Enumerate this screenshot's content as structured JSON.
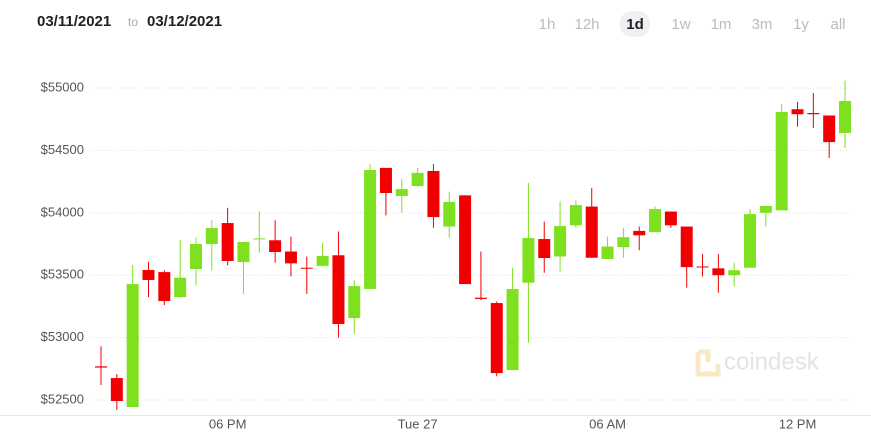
{
  "chart_data": {
    "type": "candlestick",
    "start_date": "03/11/2021",
    "date_separator": "to",
    "end_date": "03/12/2021",
    "ranges": [
      "1h",
      "12h",
      "1d",
      "1w",
      "1m",
      "3m",
      "1y",
      "all"
    ],
    "active_range": "1d",
    "watermark": "coindesk",
    "categories": [
      null,
      null,
      null,
      null,
      null,
      null,
      null,
      null,
      "06 PM",
      null,
      null,
      null,
      null,
      null,
      null,
      null,
      null,
      null,
      null,
      null,
      "Tue 27",
      null,
      null,
      null,
      null,
      null,
      null,
      null,
      null,
      null,
      null,
      null,
      "06 AM",
      null,
      null,
      null,
      null,
      null,
      null,
      null,
      null,
      null,
      null,
      null,
      "12 PM",
      null,
      null,
      null
    ],
    "open": [
      52770,
      52676,
      52444,
      53542,
      53525,
      53325,
      53550,
      53750,
      53918,
      53605,
      53790,
      53780,
      53690,
      53560,
      53575,
      53660,
      53157,
      53390,
      54360,
      54135,
      54215,
      54335,
      53890,
      54140,
      53320,
      53277,
      52740,
      53440,
      53790,
      53650,
      53900,
      54050,
      53630,
      53725,
      53855,
      53845,
      54010,
      53890,
      53570,
      53555,
      53500,
      53560,
      54000,
      54020,
      54830,
      54800,
      54780,
      54640
    ],
    "high": [
      52930,
      52708,
      53582,
      53606,
      53540,
      53782,
      53800,
      53940,
      54040,
      53770,
      54010,
      53940,
      53810,
      53650,
      53760,
      53850,
      53460,
      54390,
      54360,
      54270,
      54360,
      54390,
      54170,
      54140,
      53690,
      53290,
      53560,
      54240,
      53930,
      54090,
      54100,
      54200,
      53810,
      53880,
      53890,
      54050,
      54010,
      53890,
      53670,
      53670,
      53600,
      54030,
      54055,
      54870,
      54890,
      54960,
      54780,
      55060
    ],
    "low": [
      52620,
      52420,
      52444,
      53325,
      53260,
      53320,
      53420,
      53540,
      53580,
      53350,
      53680,
      53600,
      53490,
      53350,
      53570,
      53000,
      53030,
      53390,
      53980,
      54000,
      54210,
      53880,
      53800,
      53430,
      53300,
      52690,
      52740,
      52960,
      53520,
      53530,
      53880,
      53640,
      53630,
      53640,
      53700,
      53845,
      53880,
      53400,
      53490,
      53360,
      53410,
      53560,
      53890,
      54020,
      54690,
      54680,
      54440,
      54520
    ],
    "close": [
      52760,
      52492,
      53429,
      53462,
      53293,
      53480,
      53750,
      53878,
      53614,
      53766,
      53795,
      53686,
      53595,
      53555,
      53655,
      53109,
      53413,
      54343,
      54159,
      54190,
      54320,
      53966,
      54087,
      53429,
      53310,
      52716,
      53389,
      53798,
      53638,
      53894,
      54062,
      53640,
      53730,
      53805,
      53820,
      54030,
      53900,
      53565,
      53565,
      53500,
      53540,
      53990,
      54055,
      54808,
      54790,
      54790,
      54567,
      54896
    ],
    "up_color": "#7fe01f",
    "down_color": "#f00000",
    "ylim": [
      52380,
      55150
    ],
    "yticks": [
      {
        "value": 52500,
        "label": "$52500"
      },
      {
        "value": 53000,
        "label": "$53000"
      },
      {
        "value": 53500,
        "label": "$53500"
      },
      {
        "value": 54000,
        "label": "$54000"
      },
      {
        "value": 54500,
        "label": "$54500"
      },
      {
        "value": 55000,
        "label": "$55000"
      }
    ],
    "grid": true
  }
}
